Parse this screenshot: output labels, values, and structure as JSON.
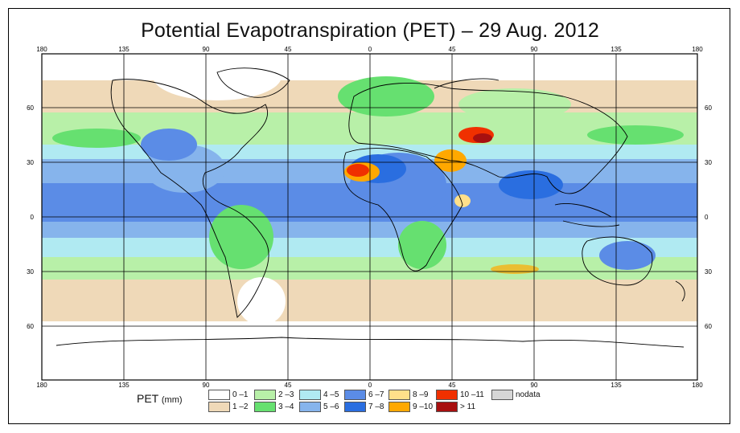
{
  "title": "Potential Evapotranspiration (PET) – 29 Aug. 2012",
  "lon_ticks": [
    "180",
    "135",
    "90",
    "45",
    "0",
    "45",
    "90",
    "135",
    "180"
  ],
  "lat_ticks": [
    "60",
    "30",
    "0",
    "30",
    "60"
  ],
  "legend": {
    "title": "PET",
    "unit": "(mm)",
    "items": [
      {
        "label": "0 –1",
        "color": "#ffffff"
      },
      {
        "label": "1 –2",
        "color": "#efd9b8"
      },
      {
        "label": "2 –3",
        "color": "#b8f0a8"
      },
      {
        "label": "3 –4",
        "color": "#66e070"
      },
      {
        "label": "4 –5",
        "color": "#b0eaf2"
      },
      {
        "label": "5 –6",
        "color": "#86b4ec"
      },
      {
        "label": "6 –7",
        "color": "#5b8ce6"
      },
      {
        "label": "7 –8",
        "color": "#2a6ee0"
      },
      {
        "label": "8 –9",
        "color": "#ffe08a"
      },
      {
        "label": "9 –10",
        "color": "#ffa800"
      },
      {
        "label": "10 –11",
        "color": "#f03000"
      },
      {
        "label": "> 11",
        "color": "#a81010"
      },
      {
        "label": "nodata",
        "color": "#d6d6d6"
      }
    ]
  }
}
